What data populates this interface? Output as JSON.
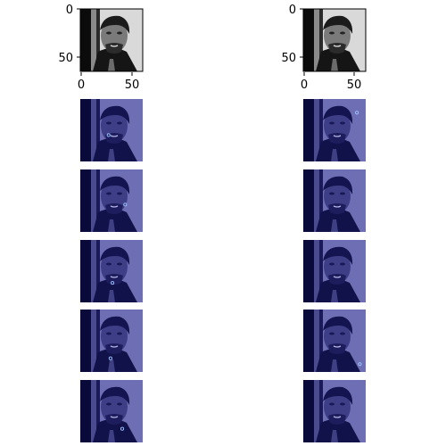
{
  "figure": {
    "background": "#ffffff",
    "top_row": {
      "colormap": "gray",
      "y_ticks": [
        "0",
        "50"
      ],
      "x_ticks": [
        "0",
        "50"
      ]
    },
    "overlay_colormap": "purple-blue",
    "marker_color": "#9fc4ff",
    "panels": [
      {
        "id": "r0-left",
        "kind": "grayscale",
        "marker": null
      },
      {
        "id": "r0-right",
        "kind": "grayscale",
        "marker": null
      },
      {
        "id": "r1-left",
        "kind": "tinted",
        "marker": {
          "x": 29,
          "y": 37
        }
      },
      {
        "id": "r1-right",
        "kind": "tinted",
        "marker": {
          "x": 55,
          "y": 14
        }
      },
      {
        "id": "r2-left",
        "kind": "tinted",
        "marker": {
          "x": 46,
          "y": 36
        }
      },
      {
        "id": "r2-right",
        "kind": "tinted",
        "marker": null
      },
      {
        "id": "r3-left",
        "kind": "tinted",
        "marker": {
          "x": 33,
          "y": 44
        }
      },
      {
        "id": "r3-right",
        "kind": "tinted",
        "marker": null
      },
      {
        "id": "r4-left",
        "kind": "tinted",
        "marker": {
          "x": 31,
          "y": 50
        }
      },
      {
        "id": "r4-right",
        "kind": "tinted",
        "marker": {
          "x": 58,
          "y": 56
        }
      },
      {
        "id": "r5-left",
        "kind": "tinted",
        "marker": {
          "x": 43,
          "y": 50
        }
      },
      {
        "id": "r5-right",
        "kind": "tinted",
        "marker": null
      }
    ]
  }
}
